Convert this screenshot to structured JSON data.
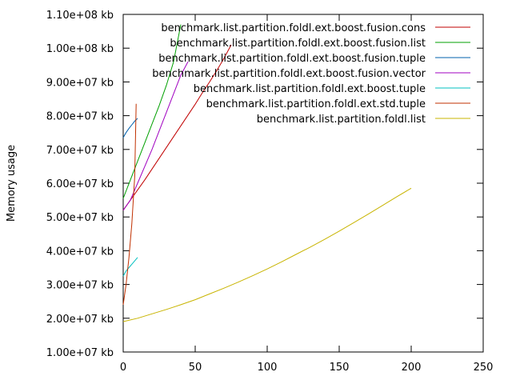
{
  "chart_data": {
    "type": "line",
    "title": "",
    "xlabel": "",
    "ylabel": "Memory usage",
    "xlim": [
      0,
      250
    ],
    "ylim": [
      10000000,
      110000000
    ],
    "grid": false,
    "legend_position": "top-right",
    "x_ticks": [
      0,
      50,
      100,
      150,
      200,
      250
    ],
    "x_tick_labels": [
      "0",
      "50",
      "100",
      "150",
      "200",
      "250"
    ],
    "y_ticks": [
      10000000,
      20000000,
      30000000,
      40000000,
      50000000,
      60000000,
      70000000,
      80000000,
      90000000,
      100000000,
      110000000
    ],
    "y_tick_labels": [
      "1.00e+07 kb",
      "2.00e+07 kb",
      "3.00e+07 kb",
      "4.00e+07 kb",
      "5.00e+07 kb",
      "6.00e+07 kb",
      "7.00e+07 kb",
      "8.00e+07 kb",
      "9.00e+07 kb",
      "1.00e+08 kb",
      "1.10e+08 kb"
    ],
    "series": [
      {
        "name": "benchmark.list.partition.foldl.ext.boost.fusion.cons",
        "color": "#c00000",
        "x": [
          0,
          5,
          10,
          15,
          20,
          25,
          30,
          35,
          40,
          45,
          50,
          55,
          60,
          65,
          70,
          75
        ],
        "y": [
          52000000,
          55000000,
          58000000,
          61000000,
          64200000,
          67400000,
          70600000,
          73800000,
          77000000,
          80200000,
          83400000,
          86800000,
          90000000,
          93400000,
          97000000,
          101000000
        ]
      },
      {
        "name": "benchmark.list.partition.foldl.ext.boost.fusion.list",
        "color": "#00a000",
        "x": [
          0,
          5,
          10,
          15,
          20,
          25,
          30,
          35,
          40
        ],
        "y": [
          55500000,
          61000000,
          66500000,
          72000000,
          77500000,
          83000000,
          89000000,
          96000000,
          107000000
        ]
      },
      {
        "name": "benchmark.list.partition.foldl.ext.boost.fusion.tuple",
        "color": "#0060ad",
        "x": [
          0,
          2,
          4,
          6,
          8,
          10
        ],
        "y": [
          73500000,
          75000000,
          76200000,
          77300000,
          78400000,
          79200000
        ]
      },
      {
        "name": "benchmark.list.partition.foldl.ext.boost.fusion.vector",
        "color": "#a000c0",
        "x": [
          0,
          5,
          10,
          15,
          20,
          25,
          30,
          35,
          40,
          45
        ],
        "y": [
          52000000,
          55000000,
          60000000,
          65000000,
          70000000,
          75500000,
          81000000,
          86500000,
          92000000,
          96000000
        ]
      },
      {
        "name": "benchmark.list.partition.foldl.ext.boost.tuple",
        "color": "#00c0c0",
        "x": [
          0,
          2,
          4,
          6,
          8,
          10
        ],
        "y": [
          32500000,
          34000000,
          35000000,
          36000000,
          37000000,
          38000000
        ]
      },
      {
        "name": "benchmark.list.partition.foldl.ext.std.tuple",
        "color": "#c03000",
        "x": [
          0,
          2,
          4,
          6,
          8,
          9
        ],
        "y": [
          24000000,
          30000000,
          38000000,
          48000000,
          62000000,
          83500000
        ]
      },
      {
        "name": "benchmark.list.partition.foldl.list",
        "color": "#c8b400",
        "x": [
          0,
          10,
          20,
          30,
          40,
          50,
          60,
          70,
          80,
          90,
          100,
          110,
          120,
          130,
          140,
          150,
          160,
          170,
          180,
          190,
          200
        ],
        "y": [
          19000000,
          20000000,
          21300000,
          22600000,
          24000000,
          25500000,
          27200000,
          28900000,
          30700000,
          32600000,
          34600000,
          36700000,
          38900000,
          41100000,
          43400000,
          45800000,
          48300000,
          50800000,
          53400000,
          56000000,
          58500000
        ]
      }
    ]
  }
}
